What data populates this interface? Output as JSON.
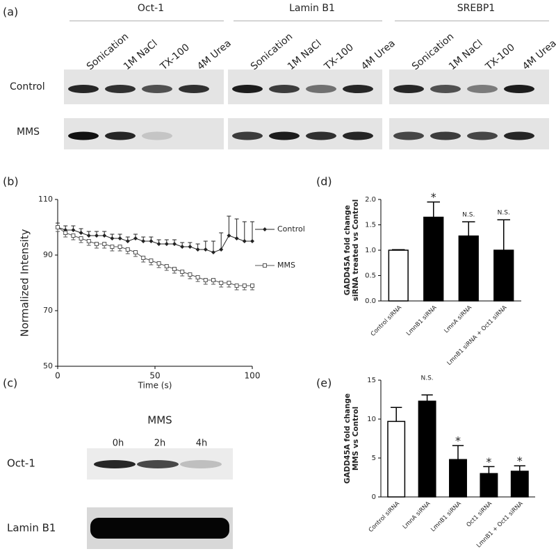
{
  "panel_a": {
    "label": "(a)",
    "rows": [
      "Control",
      "MMS"
    ],
    "groups": [
      {
        "title": "Oct-1",
        "lanes": [
          "Sonication",
          "1M NaCl",
          "TX-100",
          "4M Urea"
        ]
      },
      {
        "title": "Lamin B1",
        "lanes": [
          "Sonication",
          "1M NaCl",
          "TX-100",
          "4M Urea"
        ]
      },
      {
        "title": "SREBP1",
        "lanes": [
          "Sonication",
          "1M NaCl",
          "TX-100",
          "4M Urea"
        ]
      }
    ]
  },
  "panel_c": {
    "label": "(c)",
    "treatment": "MMS",
    "timepoints": [
      "0h",
      "2h",
      "4h"
    ],
    "rows": [
      "Oct-1",
      "Lamin B1"
    ]
  },
  "chart_data": [
    {
      "type": "line",
      "label": "(b)",
      "xlabel": "Time (s)",
      "ylabel": "Normalized Intensity",
      "x": [
        0,
        4,
        8,
        12,
        16,
        20,
        24,
        28,
        32,
        36,
        40,
        44,
        48,
        52,
        56,
        60,
        64,
        68,
        72,
        76,
        80,
        84,
        88,
        92,
        96,
        100
      ],
      "xlim": [
        0,
        100
      ],
      "xticks": [
        0,
        50,
        100
      ],
      "ylim": [
        50,
        110
      ],
      "yticks": [
        50,
        70,
        90,
        110
      ],
      "series": [
        {
          "name": "Control",
          "color": "#222",
          "marker": "diamond",
          "values": [
            100,
            99,
            99,
            98,
            97,
            97,
            97,
            96,
            96,
            95,
            96,
            95,
            95,
            94,
            94,
            94,
            93,
            93,
            92,
            92,
            91,
            92,
            97,
            96,
            95,
            95
          ],
          "errors": [
            1.5,
            1.5,
            1.5,
            1.5,
            1.5,
            1.5,
            1.5,
            1.5,
            1.5,
            1.5,
            1.5,
            1.5,
            1.5,
            1.5,
            1.5,
            1.5,
            1.5,
            1.5,
            2,
            3,
            4,
            6,
            7,
            7,
            7,
            7
          ]
        },
        {
          "name": "MMS",
          "color": "#555",
          "marker": "square",
          "values": [
            100,
            98,
            97,
            96,
            95,
            94,
            94,
            93,
            93,
            92,
            91,
            89,
            88,
            87,
            86,
            85,
            84,
            83,
            82,
            81,
            81,
            80,
            80,
            79,
            79,
            79
          ],
          "errors": [
            1.5,
            1.5,
            1.5,
            1.5,
            1.5,
            1.5,
            1.5,
            1.5,
            1.5,
            1.5,
            1.5,
            1.5,
            1.5,
            1.5,
            1.5,
            1.5,
            1.5,
            1.5,
            1.5,
            1.5,
            1.5,
            1.5,
            1.5,
            1.5,
            1.5,
            1.5
          ]
        }
      ]
    },
    {
      "type": "bar",
      "label": "(d)",
      "ylabel": [
        "GADD45A fold change",
        "siRNA treated vs Control"
      ],
      "categories": [
        "Control siRNA",
        "LmnB1 siRNA",
        "LmnA siRNA",
        "LmnB1 siRNA + Oct1 siRNA"
      ],
      "values": [
        1.0,
        1.65,
        1.28,
        1.0
      ],
      "errors": [
        0.01,
        0.3,
        0.28,
        0.6
      ],
      "colors": [
        "#ffffff",
        "#000000",
        "#000000",
        "#000000"
      ],
      "annotations": [
        null,
        "*",
        "N.S.",
        "N.S."
      ],
      "ylim": [
        0,
        2
      ],
      "yticks": [
        {
          "value": 0,
          "label": "0.0"
        },
        0.5,
        {
          "value": 1,
          "label": "1.0"
        },
        1.5,
        {
          "value": 2,
          "label": "2.0"
        }
      ]
    },
    {
      "type": "bar",
      "label": "(e)",
      "ylabel": [
        "GADD45A fold change",
        "MMS vs Control"
      ],
      "categories": [
        "Control siRNA",
        "LmnA siRNA",
        "LmnB1 siRNA",
        "Oct1 siRNA",
        "LmnB1 + Oct1 siRNA"
      ],
      "values": [
        9.7,
        12.3,
        4.8,
        3.0,
        3.3
      ],
      "errors": [
        1.8,
        0.8,
        1.8,
        0.9,
        0.7
      ],
      "colors": [
        "#ffffff",
        "#000000",
        "#000000",
        "#000000",
        "#000000"
      ],
      "annotations": [
        null,
        "N.S.",
        "*",
        "*",
        "*"
      ],
      "ylim": [
        0,
        15
      ],
      "yticks": [
        0,
        5,
        10,
        15
      ]
    }
  ]
}
